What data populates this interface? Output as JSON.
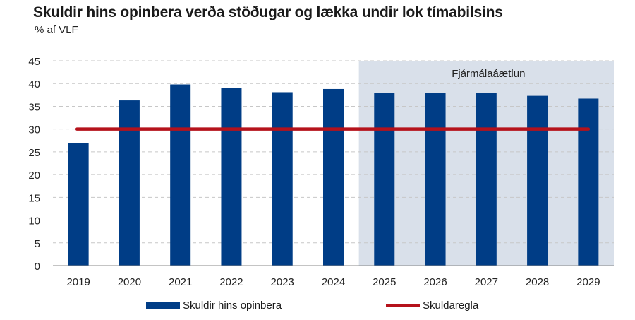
{
  "title": "Skuldir hins opinbera verða stöðugar og lækka undir lok tímabilsins",
  "subtitle": "% af VLF",
  "colors": {
    "bar": "#003d86",
    "rule": "#b5121b",
    "forecast_band": "#d9e0ea",
    "grid": "#c7c7c7"
  },
  "chart_data": {
    "type": "bar",
    "categories": [
      "2019",
      "2020",
      "2021",
      "2022",
      "2023",
      "2024",
      "2025",
      "2026",
      "2027",
      "2028",
      "2029"
    ],
    "series": [
      {
        "name": "Skuldir hins opinbera",
        "values": [
          27,
          36.3,
          39.8,
          39,
          38.1,
          38.8,
          37.9,
          38,
          37.9,
          37.3,
          36.7
        ]
      },
      {
        "name": "Skuldaregla",
        "type": "line",
        "values": [
          30,
          30,
          30,
          30,
          30,
          30,
          30,
          30,
          30,
          30,
          30
        ]
      }
    ],
    "ylim": [
      0,
      45
    ],
    "yticks": [
      "0",
      "5",
      "10",
      "15",
      "20",
      "25",
      "30",
      "35",
      "40",
      "45"
    ],
    "grid": "horizontal-dashed",
    "shaded_region": {
      "label": "Fjármálaáætlun",
      "from": "2025",
      "to": "2029"
    },
    "legend_position": "bottom"
  }
}
